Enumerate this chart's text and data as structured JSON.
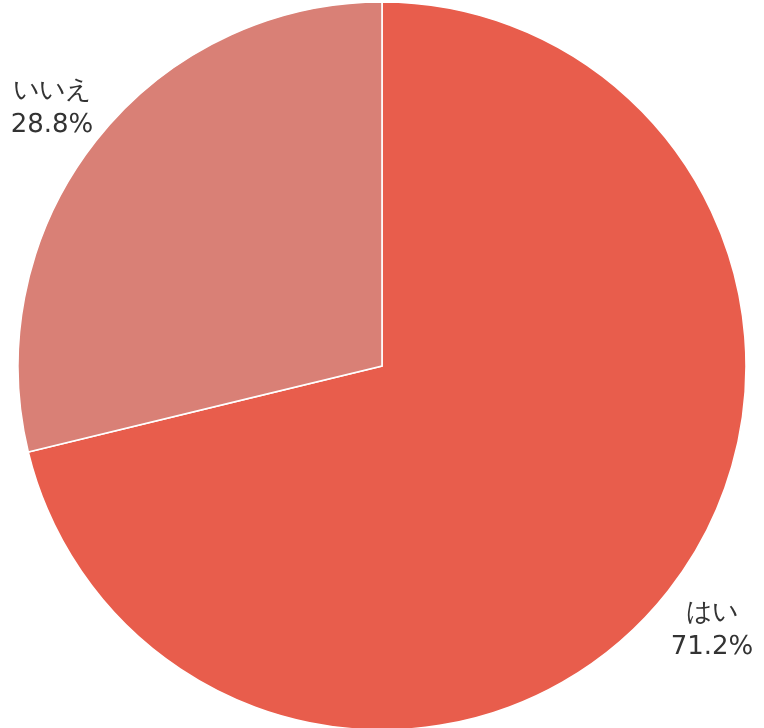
{
  "chart_data": {
    "type": "pie",
    "categories": [
      "はい",
      "いいえ"
    ],
    "values": [
      71.2,
      28.8
    ],
    "colors": [
      "#e85d4c",
      "#d98076"
    ],
    "value_labels": [
      "71.2%",
      "28.8%"
    ]
  }
}
